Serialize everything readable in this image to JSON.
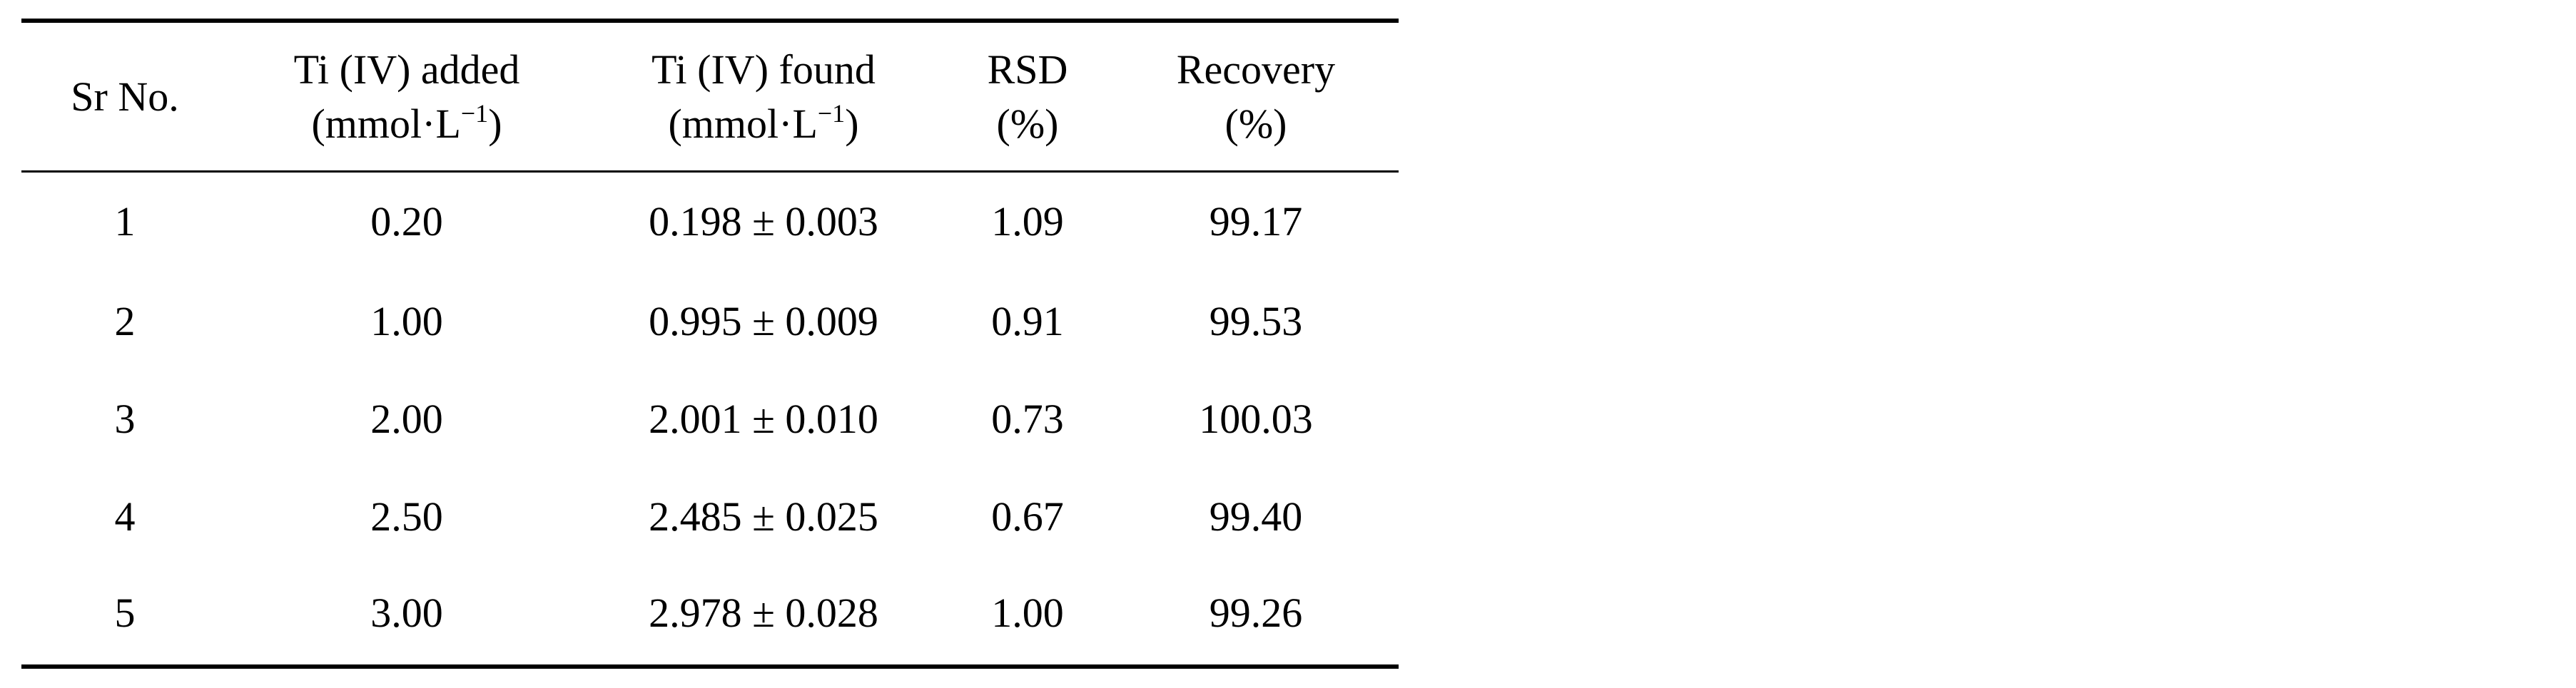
{
  "table": {
    "columns": [
      {
        "line1": "Sr No.",
        "line2": ""
      },
      {
        "line1": "Ti (IV) added",
        "line2_base": "(mmol·L",
        "line2_sup": "−1",
        "line2_end": ")"
      },
      {
        "line1": "Ti (IV) found",
        "line2_base": "(mmol·L",
        "line2_sup": "−1",
        "line2_end": ")"
      },
      {
        "line1": "RSD",
        "line2": "(%)"
      },
      {
        "line1": "Recovery",
        "line2": "(%)"
      }
    ],
    "rows": [
      {
        "sr": "1",
        "added": "0.20",
        "found": "0.198 ± 0.003",
        "rsd": "1.09",
        "recovery": "99.17"
      },
      {
        "sr": "2",
        "added": "1.00",
        "found": "0.995 ± 0.009",
        "rsd": "0.91",
        "recovery": "99.53"
      },
      {
        "sr": "3",
        "added": "2.00",
        "found": "2.001 ± 0.010",
        "rsd": "0.73",
        "recovery": "100.03"
      },
      {
        "sr": "4",
        "added": "2.50",
        "found": "2.485 ± 0.025",
        "rsd": "0.67",
        "recovery": "99.40"
      },
      {
        "sr": "5",
        "added": "3.00",
        "found": "2.978 ± 0.028",
        "rsd": "1.00",
        "recovery": "99.26"
      }
    ]
  }
}
